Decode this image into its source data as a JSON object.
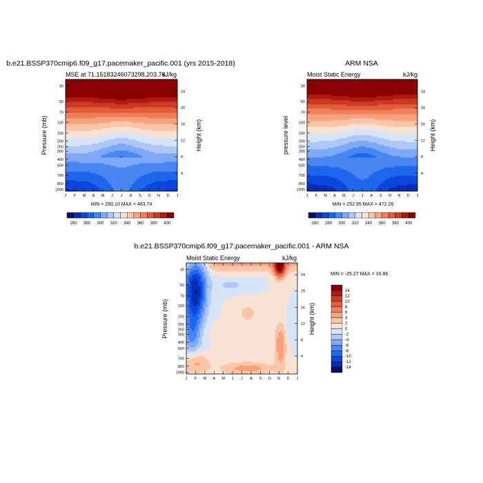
{
  "chart_data": [
    {
      "type": "heatmap",
      "title": "b.e21.BSSP370cmip6.f09_g17.pacemaker_pacific.001 (yrs 2015-2018)",
      "left_label": "MSE at 71.15183246073298,203.76",
      "right_label": "kJ/kg",
      "ylabel": "Pressure (mb)",
      "ylabel_right": "Height (km)",
      "months": [
        "J",
        "F",
        "M",
        "A",
        "M",
        "J",
        "J",
        "A",
        "S",
        "O",
        "N",
        "D",
        "J"
      ],
      "pressure_ticks": [
        "30",
        "50",
        "70",
        "100",
        "150",
        "200",
        "250",
        "300",
        "400",
        "500",
        "700",
        "850",
        "1000"
      ],
      "height_ticks": [
        "24",
        "20",
        "16",
        "12",
        "8",
        "4"
      ],
      "minmax": "MIN = 260.10 MAX = 483.74",
      "colorbar_labels": [
        "260",
        "280",
        "300",
        "320",
        "340",
        "360",
        "380",
        "400"
      ]
    },
    {
      "type": "heatmap",
      "title": "ARM NSA",
      "left_label": "Moist Static Energy",
      "right_label": "kJ/kg",
      "ylabel": "pressure level",
      "ylabel_right": "Height (km)",
      "months": [
        "J",
        "F",
        "M",
        "A",
        "M",
        "J",
        "J",
        "A",
        "S",
        "O",
        "N",
        "D",
        "J"
      ],
      "pressure_ticks": [
        "30",
        "50",
        "70",
        "100",
        "150",
        "200",
        "250",
        "300",
        "400",
        "500",
        "700",
        "850",
        "1000"
      ],
      "height_ticks": [
        "24",
        "20",
        "16",
        "12",
        "8",
        "4"
      ],
      "minmax": "MIN = 252.95 MAX = 472.26",
      "colorbar_labels": [
        "260",
        "280",
        "300",
        "320",
        "340",
        "360",
        "380",
        "400"
      ]
    },
    {
      "type": "heatmap",
      "title": "b.e21.BSSP370cmip6.f09_g17.pacemaker_pacific.001 - ARM NSA",
      "left_label": "Moist Static Energy",
      "right_label": "kJ/kg",
      "ylabel": "Pressure (mb)",
      "ylabel_right": "Height (km)",
      "months": [
        "J",
        "F",
        "M",
        "A",
        "M",
        "J",
        "J",
        "A",
        "S",
        "O",
        "N",
        "D",
        "J"
      ],
      "pressure_ticks": [
        "30",
        "50",
        "70",
        "100",
        "150",
        "200",
        "250",
        "300",
        "400",
        "500",
        "700",
        "850",
        "1000"
      ],
      "height_ticks": [
        "24",
        "20",
        "16",
        "12",
        "8",
        "4"
      ],
      "minmax": "MIN = -25.27 MAX =  16.86",
      "colorbar_labels": [
        "14",
        "12",
        "10",
        "8",
        "6",
        "4",
        "2",
        "0",
        "-2",
        "-4",
        "-6",
        "-8",
        "-10",
        "-12",
        "-14"
      ]
    }
  ]
}
